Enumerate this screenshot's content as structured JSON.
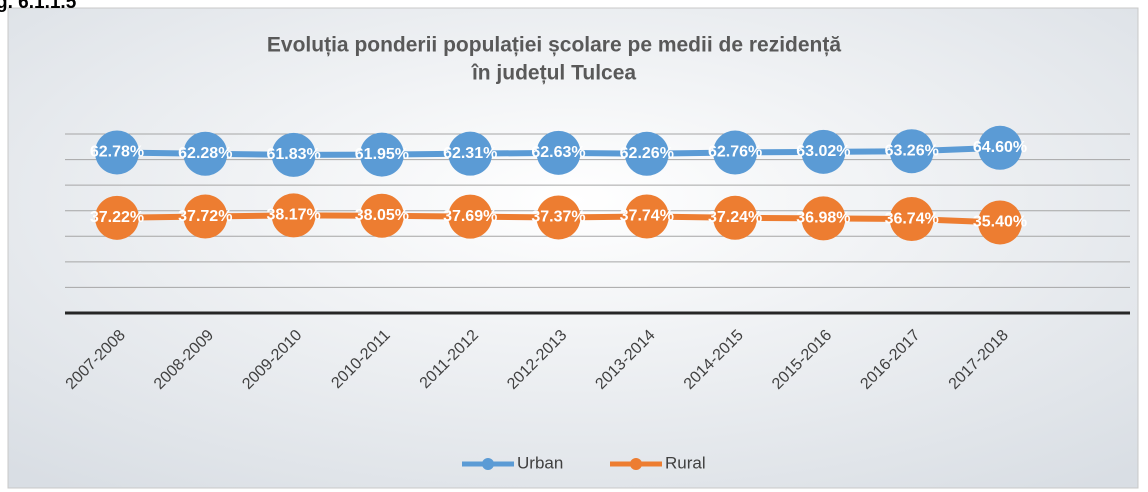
{
  "caption": "g. 6.1.1.5",
  "chart_data": {
    "type": "line",
    "title": [
      "Evoluția ponderii populației școlare pe medii de rezidență",
      "în județul Tulcea"
    ],
    "categories": [
      "2007-2008",
      "2008-2009",
      "2009-2010",
      "2010-2011",
      "2011-2012",
      "2012-2013",
      "2013-2014",
      "2014-2015",
      "2015-2016",
      "2016-2017",
      "2017-2018"
    ],
    "series": [
      {
        "name": "Urban",
        "color": "#5b9bd5",
        "values": [
          62.78,
          62.28,
          61.83,
          61.95,
          62.31,
          62.63,
          62.26,
          62.76,
          63.02,
          63.26,
          64.6
        ],
        "value_labels": [
          "62.78%",
          "62.28%",
          "61.83%",
          "61.95%",
          "62.31%",
          "62.63%",
          "62.26%",
          "62.76%",
          "63.02%",
          "63.26%",
          "64.60%"
        ]
      },
      {
        "name": "Rural",
        "color": "#ed7d31",
        "values": [
          37.22,
          37.72,
          38.17,
          38.05,
          37.69,
          37.37,
          37.74,
          37.24,
          36.98,
          36.74,
          35.4
        ],
        "value_labels": [
          "37.22%",
          "37.72%",
          "38.17%",
          "38.05%",
          "37.69%",
          "37.37%",
          "37.74%",
          "37.24%",
          "36.98%",
          "36.74%",
          "35.40%"
        ]
      }
    ],
    "ylim": [
      0,
      70
    ],
    "yticks": [
      0,
      10,
      20,
      30,
      40,
      50,
      60,
      70
    ],
    "grid": true,
    "legend": "bottom"
  }
}
